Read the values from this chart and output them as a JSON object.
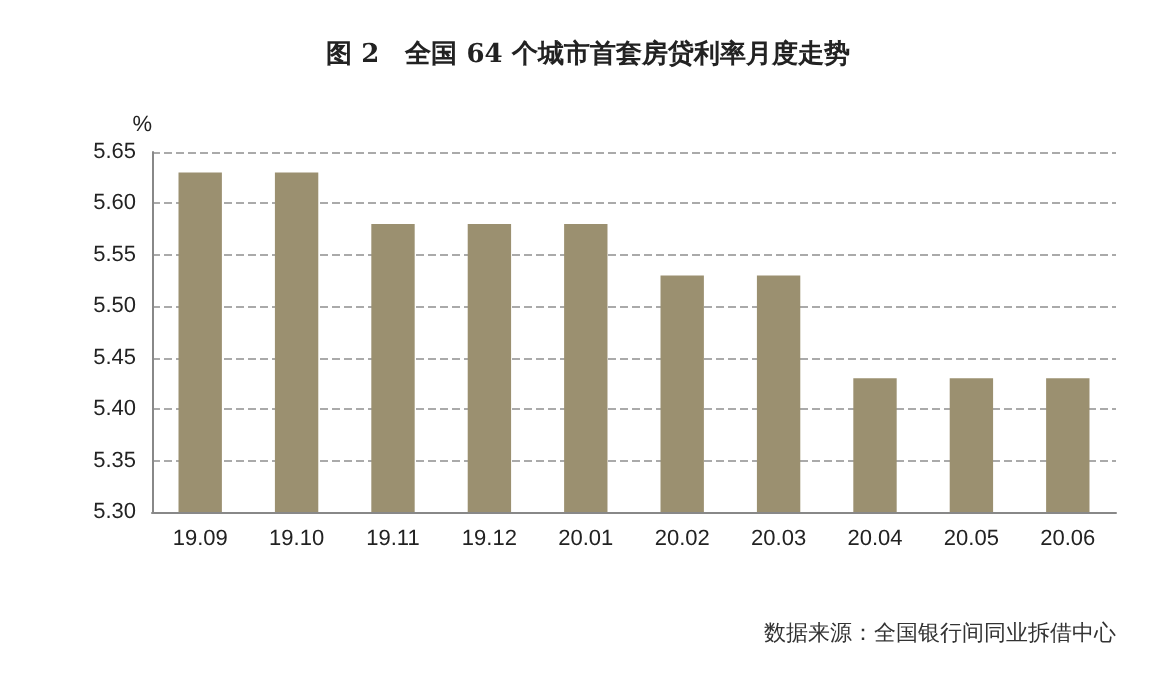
{
  "chart_data": {
    "type": "bar",
    "title": "图 2　全国 64 个城市首套房贷利率月度走势",
    "ylabel": "%",
    "categories": [
      "19.09",
      "19.10",
      "19.11",
      "19.12",
      "20.01",
      "20.02",
      "20.03",
      "20.04",
      "20.05",
      "20.06"
    ],
    "values": [
      5.63,
      5.63,
      5.58,
      5.58,
      5.58,
      5.53,
      5.53,
      5.43,
      5.43,
      5.43
    ],
    "color": "#9b9070",
    "ylim": [
      5.3,
      5.65
    ],
    "yticks": [
      {
        "value": 5.3,
        "label": "5.30"
      },
      {
        "value": 5.35,
        "label": "5.35"
      },
      {
        "value": 5.4,
        "label": "5.40"
      },
      {
        "value": 5.45,
        "label": "5.45"
      },
      {
        "value": 5.5,
        "label": "5.50"
      },
      {
        "value": 5.55,
        "label": "5.55"
      },
      {
        "value": 5.6,
        "label": "5.60"
      },
      {
        "value": 5.65,
        "label": "5.65"
      }
    ],
    "grid": "y",
    "annotations": [
      "数据来源：全国银行间同业拆借中心"
    ]
  }
}
